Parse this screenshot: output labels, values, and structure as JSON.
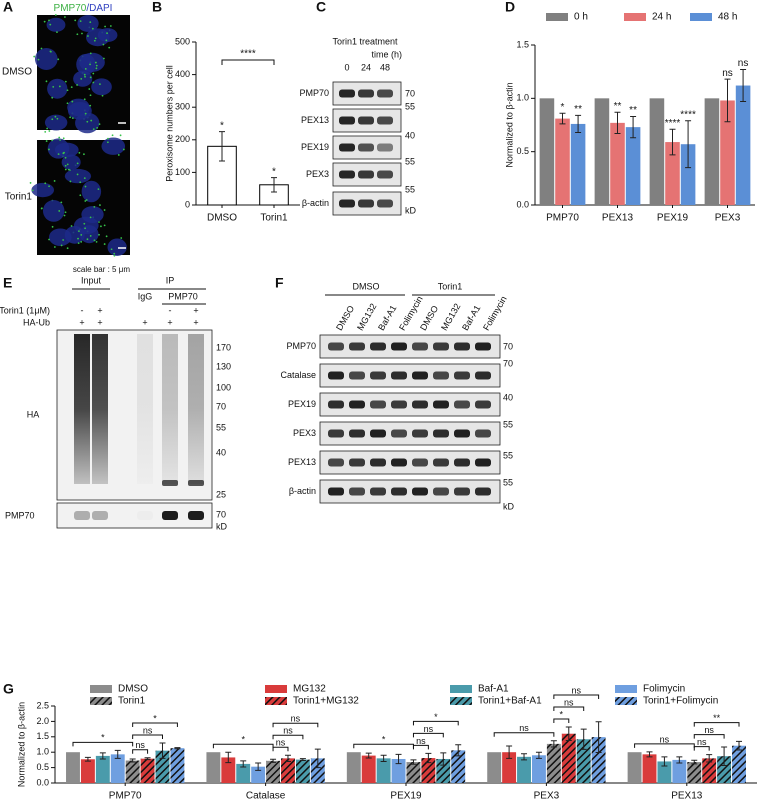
{
  "panels": [
    "A",
    "B",
    "C",
    "D",
    "E",
    "F",
    "G"
  ],
  "panel_a": {
    "stain": [
      "PMP70",
      "/DAPI"
    ],
    "rows": [
      "DMSO",
      "Torin1"
    ],
    "scale_note": "scale bar : 5 μm"
  },
  "blot_c": {
    "title": "Torin1 treatment",
    "subtitle": "time (h)",
    "lanes": [
      "0",
      "24",
      "48"
    ],
    "rows": [
      "PMP70",
      "PEX13",
      "PEX19",
      "PEX3",
      "β-actin"
    ],
    "markers": [
      "70",
      "55",
      "40",
      "55",
      "55"
    ],
    "unit": "kD"
  },
  "blot_e": {
    "groups": [
      "Input",
      "IP"
    ],
    "subgroups": [
      "IgG",
      "PMP70"
    ],
    "conditions": [
      {
        "name": "Torin1 (1μM)",
        "lanes": [
          "-",
          "+",
          null,
          "-",
          "+"
        ]
      },
      {
        "name": "HA-Ub",
        "lanes": [
          "+",
          "+",
          "+",
          "+",
          "+"
        ]
      }
    ],
    "rows": [
      "HA",
      "PMP70"
    ],
    "markers": [
      "170",
      "130",
      "100",
      "70",
      "55",
      "40",
      "25"
    ],
    "pmp70_marker": "70",
    "unit": "kD"
  },
  "blot_f": {
    "groups": [
      "DMSO",
      "Torin1"
    ],
    "lanes": [
      "DMSO",
      "MG132",
      "Baf-A1",
      "Folimycin",
      "DMSO",
      "MG132",
      "Baf-A1",
      "Folimycin"
    ],
    "rows": [
      "PMP70",
      "Catalase",
      "PEX19",
      "PEX3",
      "PEX13",
      "β-actin"
    ],
    "markers": [
      "70",
      "70",
      "40",
      "55",
      "55",
      "55"
    ],
    "unit": "kD"
  },
  "chart_data": [
    {
      "type": "bar",
      "ylabel": "Peroxisome numbers per cell",
      "categories": [
        "DMSO",
        "Torin1"
      ],
      "values": [
        180,
        62
      ],
      "errors": [
        45,
        22
      ],
      "color": "#ffffff",
      "edgecolor": "#000000",
      "ylim": [
        0,
        500
      ],
      "yticks": [
        0,
        100,
        200,
        300,
        400,
        500
      ],
      "significance": "****"
    },
    {
      "type": "bar",
      "ylabel": "Normalized to β-actin",
      "categories": [
        "PMP70",
        "PEX13",
        "PEX19",
        "PEX3"
      ],
      "series": [
        {
          "name": "0 h",
          "color": "#808080",
          "values": [
            1,
            1,
            1,
            1
          ]
        },
        {
          "name": "24 h",
          "color": "#e57373",
          "values": [
            0.81,
            0.77,
            0.59,
            0.98
          ],
          "errors": [
            0.05,
            0.1,
            0.12,
            0.2
          ],
          "significance": [
            "*",
            "**",
            "****",
            "ns"
          ]
        },
        {
          "name": "48 h",
          "color": "#5b8fd6",
          "values": [
            0.76,
            0.73,
            0.57,
            1.12
          ],
          "errors": [
            0.08,
            0.1,
            0.22,
            0.15
          ],
          "significance": [
            "**",
            "**",
            "****",
            "ns"
          ]
        }
      ],
      "ylim": [
        0,
        1.5
      ],
      "yticks": [
        {
          "value": 0,
          "label": "0.0"
        },
        {
          "value": 0.5,
          "label": "0.5"
        },
        {
          "value": 1,
          "label": "1.0"
        },
        {
          "value": 1.5,
          "label": "1.5"
        }
      ],
      "legend": "top"
    },
    {
      "type": "bar",
      "ylabel": "Normalized to β-actin",
      "categories": [
        "PMP70",
        "Catalase",
        "PEX19",
        "PEX3",
        "PEX13"
      ],
      "series": [
        {
          "name": "DMSO",
          "color": "#8c8c8c",
          "hatched": false,
          "values": [
            1,
            1,
            1,
            1,
            1
          ]
        },
        {
          "name": "MG132",
          "color": "#d93b3b",
          "hatched": false,
          "values": [
            0.77,
            0.83,
            0.89,
            1.0,
            0.93
          ],
          "errors": [
            0.06,
            0.17,
            0.08,
            0.2,
            0.08
          ]
        },
        {
          "name": "Baf-A1",
          "color": "#4a9bab",
          "hatched": false,
          "values": [
            0.88,
            0.62,
            0.8,
            0.85,
            0.7
          ],
          "errors": [
            0.1,
            0.1,
            0.1,
            0.1,
            0.15
          ]
        },
        {
          "name": "Folimycin",
          "color": "#6f9fe0",
          "hatched": false,
          "values": [
            0.93,
            0.53,
            0.78,
            0.9,
            0.75
          ],
          "errors": [
            0.13,
            0.12,
            0.15,
            0.1,
            0.1
          ]
        },
        {
          "name": "Torin1",
          "color": "#8c8c8c",
          "hatched": true,
          "values": [
            0.73,
            0.72,
            0.68,
            1.27,
            0.68
          ],
          "errors": [
            0.05,
            0.05,
            0.07,
            0.1,
            0.06
          ]
        },
        {
          "name": "Torin1+MG132",
          "color": "#d93b3b",
          "hatched": true,
          "values": [
            0.79,
            0.8,
            0.81,
            1.6,
            0.8
          ],
          "errors": [
            0.03,
            0.1,
            0.15,
            0.22,
            0.12
          ]
        },
        {
          "name": "Torin1+Baf-A1",
          "color": "#4a9bab",
          "hatched": true,
          "values": [
            1.05,
            0.76,
            0.78,
            1.42,
            0.87
          ],
          "errors": [
            0.25,
            0.03,
            0.2,
            0.33,
            0.3
          ]
        },
        {
          "name": "Torin1+Folimycin",
          "color": "#6f9fe0",
          "hatched": true,
          "values": [
            1.13,
            0.8,
            1.06,
            1.49,
            1.21
          ],
          "errors": [
            0.02,
            0.3,
            0.18,
            0.5,
            0.14
          ]
        }
      ],
      "brackets": [
        [
          {
            "text": "ns",
            "from": "Torin1",
            "to": "Torin1+MG132"
          },
          {
            "text": "ns",
            "from": "Torin1",
            "to": "Torin1+Baf-A1"
          },
          {
            "text": "*",
            "from": "Torin1",
            "to": "Torin1+Folimycin"
          },
          {
            "text": "*",
            "from": "DMSO",
            "to": "Torin1"
          }
        ],
        [
          {
            "text": "ns",
            "from": "Torin1",
            "to": "Torin1+MG132"
          },
          {
            "text": "ns",
            "from": "Torin1",
            "to": "Torin1+Baf-A1"
          },
          {
            "text": "ns",
            "from": "Torin1",
            "to": "Torin1+Folimycin"
          },
          {
            "text": "*",
            "from": "DMSO",
            "to": "Torin1"
          }
        ],
        [
          {
            "text": "ns",
            "from": "Torin1",
            "to": "Torin1+MG132"
          },
          {
            "text": "ns",
            "from": "Torin1",
            "to": "Torin1+Baf-A1"
          },
          {
            "text": "*",
            "from": "Torin1",
            "to": "Torin1+Folimycin"
          },
          {
            "text": "*",
            "from": "DMSO",
            "to": "Torin1"
          }
        ],
        [
          {
            "text": "*",
            "from": "Torin1",
            "to": "Torin1+MG132"
          },
          {
            "text": "ns",
            "from": "Torin1",
            "to": "Torin1+Baf-A1"
          },
          {
            "text": "ns",
            "from": "Torin1",
            "to": "Torin1+Folimycin"
          },
          {
            "text": "ns",
            "from": "DMSO",
            "to": "Torin1"
          }
        ],
        [
          {
            "text": "ns",
            "from": "Torin1",
            "to": "Torin1+MG132"
          },
          {
            "text": "ns",
            "from": "Torin1",
            "to": "Torin1+Baf-A1"
          },
          {
            "text": "**",
            "from": "Torin1",
            "to": "Torin1+Folimycin"
          },
          {
            "text": "ns",
            "from": "DMSO",
            "to": "Torin1"
          }
        ]
      ],
      "ylim": [
        0,
        2.5
      ],
      "yticks": [
        {
          "value": 0,
          "label": "0.0"
        },
        {
          "value": 0.5,
          "label": "0.5"
        },
        {
          "value": 1,
          "label": "1.0"
        },
        {
          "value": 1.5,
          "label": "1.5"
        },
        {
          "value": 2,
          "label": "2.0"
        },
        {
          "value": 2.5,
          "label": "2.5"
        }
      ],
      "legend": "top"
    }
  ]
}
